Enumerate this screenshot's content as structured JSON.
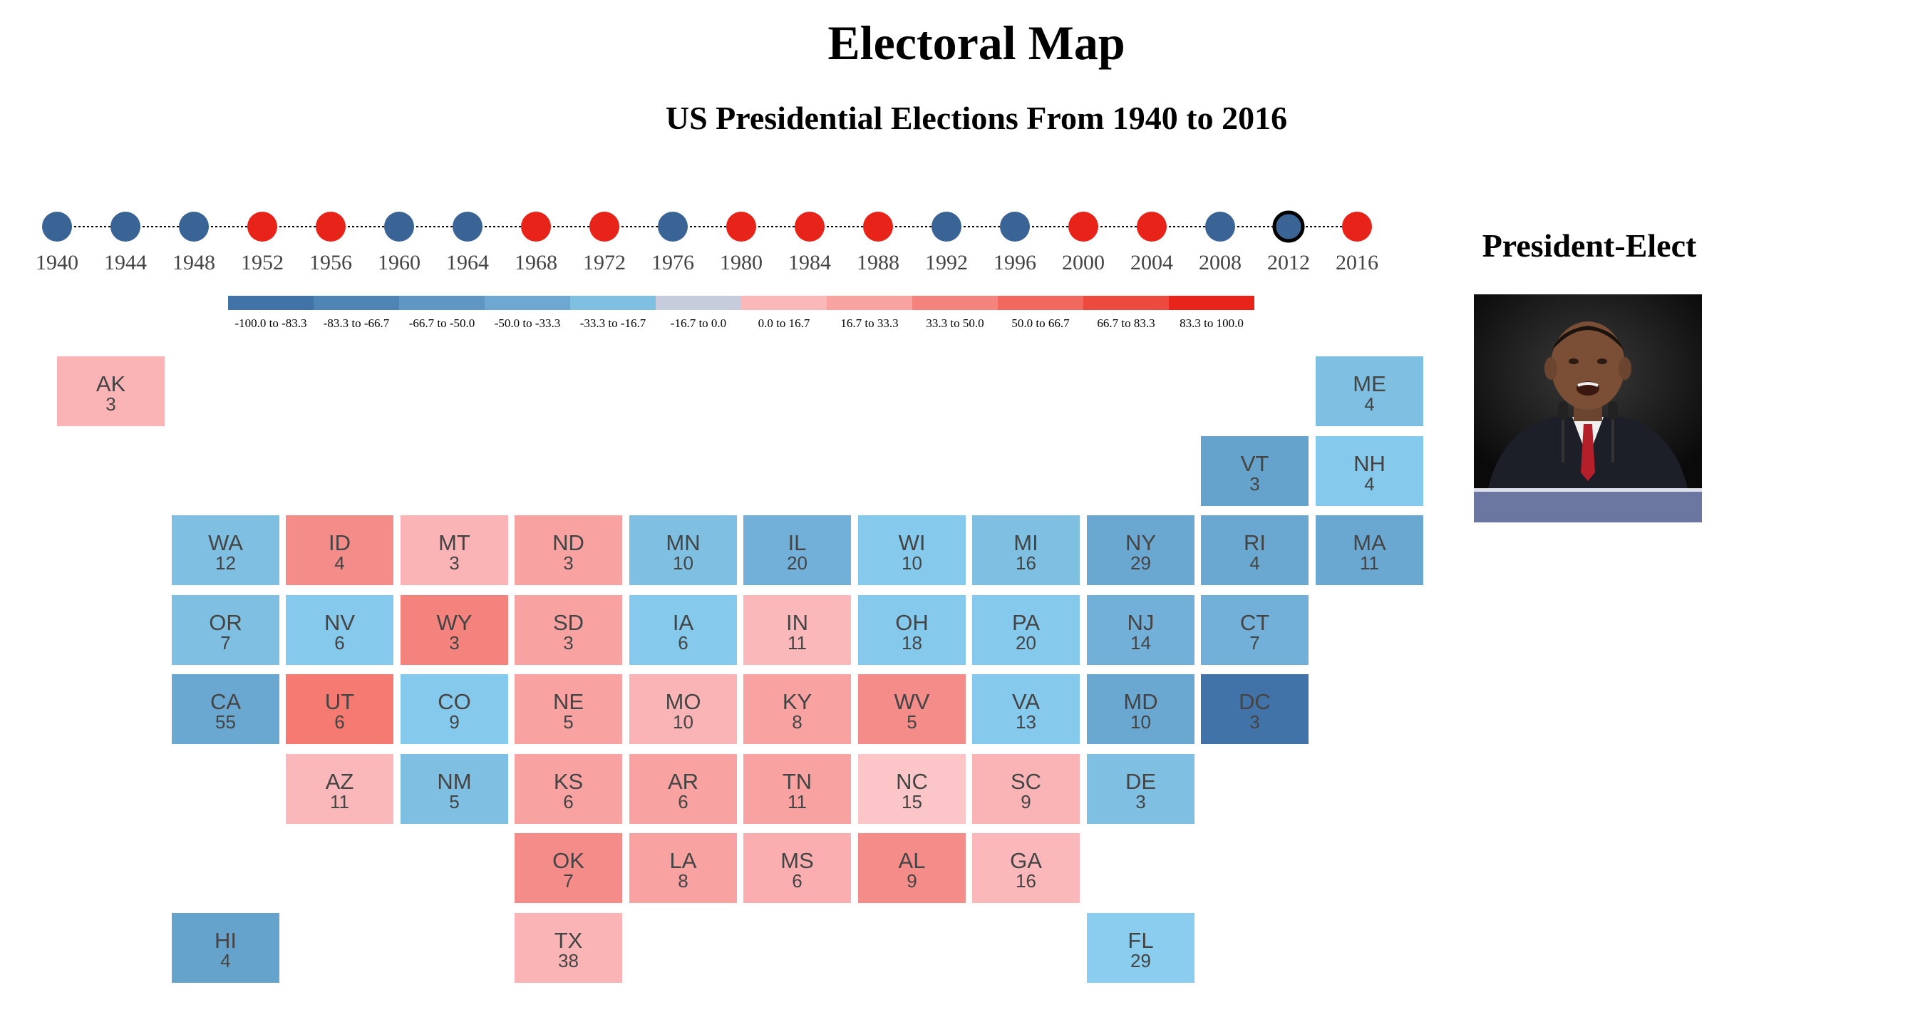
{
  "header": {
    "title": "Electoral Map",
    "subtitle": "US Presidential Elections From 1940 to 2016"
  },
  "colors": {
    "democrat": "#3a6496",
    "republican": "#e82319",
    "selected_stroke": "#000000"
  },
  "timeline": {
    "selected_year": "2012",
    "elections": [
      {
        "year": "1940",
        "winner": "D"
      },
      {
        "year": "1944",
        "winner": "D"
      },
      {
        "year": "1948",
        "winner": "D"
      },
      {
        "year": "1952",
        "winner": "R"
      },
      {
        "year": "1956",
        "winner": "R"
      },
      {
        "year": "1960",
        "winner": "D"
      },
      {
        "year": "1964",
        "winner": "D"
      },
      {
        "year": "1968",
        "winner": "R"
      },
      {
        "year": "1972",
        "winner": "R"
      },
      {
        "year": "1976",
        "winner": "D"
      },
      {
        "year": "1980",
        "winner": "R"
      },
      {
        "year": "1984",
        "winner": "R"
      },
      {
        "year": "1988",
        "winner": "R"
      },
      {
        "year": "1992",
        "winner": "D"
      },
      {
        "year": "1996",
        "winner": "D"
      },
      {
        "year": "2000",
        "winner": "R"
      },
      {
        "year": "2004",
        "winner": "R"
      },
      {
        "year": "2008",
        "winner": "D"
      },
      {
        "year": "2012",
        "winner": "D"
      },
      {
        "year": "2016",
        "winner": "R"
      }
    ]
  },
  "legend": {
    "bins": [
      {
        "label": "-100.0 to -83.3",
        "color": "#4273a8"
      },
      {
        "label": "-83.3 to -66.7",
        "color": "#4f84b6"
      },
      {
        "label": "-66.7 to -50.0",
        "color": "#5f96c4"
      },
      {
        "label": "-50.0 to -33.3",
        "color": "#6ea8d2"
      },
      {
        "label": "-33.3 to -16.7",
        "color": "#7ebfe2"
      },
      {
        "label": "-16.7 to 0.0",
        "color": "#c6ccdc"
      },
      {
        "label": "0.0 to 16.7",
        "color": "#fbb8ba"
      },
      {
        "label": "16.7 to 33.3",
        "color": "#f8a2a2"
      },
      {
        "label": "33.3 to 50.0",
        "color": "#f4827d"
      },
      {
        "label": "50.0 to 66.7",
        "color": "#f0685e"
      },
      {
        "label": "66.7 to 83.3",
        "color": "#ec4a3e"
      },
      {
        "label": "83.3 to 100.0",
        "color": "#e82319"
      }
    ]
  },
  "map": {
    "states": [
      {
        "abbr": "AK",
        "votes": "3",
        "row": 0,
        "col": 0,
        "color": "#fbb4b6"
      },
      {
        "abbr": "ME",
        "votes": "4",
        "row": 0,
        "col": 11,
        "color": "#7ebfe2"
      },
      {
        "abbr": "VT",
        "votes": "3",
        "row": 1,
        "col": 10,
        "color": "#65a3cc"
      },
      {
        "abbr": "NH",
        "votes": "4",
        "row": 1,
        "col": 11,
        "color": "#85c9ec"
      },
      {
        "abbr": "WA",
        "votes": "12",
        "row": 2,
        "col": 1,
        "color": "#7ebfe2"
      },
      {
        "abbr": "ID",
        "votes": "4",
        "row": 2,
        "col": 2,
        "color": "#f48d8a"
      },
      {
        "abbr": "MT",
        "votes": "3",
        "row": 2,
        "col": 3,
        "color": "#fbb4b6"
      },
      {
        "abbr": "ND",
        "votes": "3",
        "row": 2,
        "col": 4,
        "color": "#f8a2a2"
      },
      {
        "abbr": "MN",
        "votes": "10",
        "row": 2,
        "col": 5,
        "color": "#7ebfe2"
      },
      {
        "abbr": "IL",
        "votes": "20",
        "row": 2,
        "col": 6,
        "color": "#72b0d9"
      },
      {
        "abbr": "WI",
        "votes": "10",
        "row": 2,
        "col": 7,
        "color": "#85c9ec"
      },
      {
        "abbr": "MI",
        "votes": "16",
        "row": 2,
        "col": 8,
        "color": "#7ebfe2"
      },
      {
        "abbr": "NY",
        "votes": "29",
        "row": 2,
        "col": 9,
        "color": "#6aa8d1"
      },
      {
        "abbr": "RI",
        "votes": "4",
        "row": 2,
        "col": 10,
        "color": "#6aa8d1"
      },
      {
        "abbr": "MA",
        "votes": "11",
        "row": 2,
        "col": 11,
        "color": "#6aa8d1"
      },
      {
        "abbr": "OR",
        "votes": "7",
        "row": 3,
        "col": 1,
        "color": "#7ebfe2"
      },
      {
        "abbr": "NV",
        "votes": "6",
        "row": 3,
        "col": 2,
        "color": "#85c9ec"
      },
      {
        "abbr": "WY",
        "votes": "3",
        "row": 3,
        "col": 3,
        "color": "#f4827d"
      },
      {
        "abbr": "SD",
        "votes": "3",
        "row": 3,
        "col": 4,
        "color": "#f8a2a2"
      },
      {
        "abbr": "IA",
        "votes": "6",
        "row": 3,
        "col": 5,
        "color": "#85c9ec"
      },
      {
        "abbr": "IN",
        "votes": "11",
        "row": 3,
        "col": 6,
        "color": "#fbb8ba"
      },
      {
        "abbr": "OH",
        "votes": "18",
        "row": 3,
        "col": 7,
        "color": "#85c9ec"
      },
      {
        "abbr": "PA",
        "votes": "20",
        "row": 3,
        "col": 8,
        "color": "#85c9ec"
      },
      {
        "abbr": "NJ",
        "votes": "14",
        "row": 3,
        "col": 9,
        "color": "#72b0d9"
      },
      {
        "abbr": "CT",
        "votes": "7",
        "row": 3,
        "col": 10,
        "color": "#72b0d9"
      },
      {
        "abbr": "CA",
        "votes": "55",
        "row": 4,
        "col": 1,
        "color": "#6aa8d1"
      },
      {
        "abbr": "UT",
        "votes": "6",
        "row": 4,
        "col": 2,
        "color": "#f47a72"
      },
      {
        "abbr": "CO",
        "votes": "9",
        "row": 4,
        "col": 3,
        "color": "#85c9ec"
      },
      {
        "abbr": "NE",
        "votes": "5",
        "row": 4,
        "col": 4,
        "color": "#f8a2a2"
      },
      {
        "abbr": "MO",
        "votes": "10",
        "row": 4,
        "col": 5,
        "color": "#fbb4b6"
      },
      {
        "abbr": "KY",
        "votes": "8",
        "row": 4,
        "col": 6,
        "color": "#f8a2a2"
      },
      {
        "abbr": "WV",
        "votes": "5",
        "row": 4,
        "col": 7,
        "color": "#f48d8a"
      },
      {
        "abbr": "VA",
        "votes": "13",
        "row": 4,
        "col": 8,
        "color": "#85c9ec"
      },
      {
        "abbr": "MD",
        "votes": "10",
        "row": 4,
        "col": 9,
        "color": "#6aa8d1"
      },
      {
        "abbr": "DC",
        "votes": "3",
        "row": 4,
        "col": 10,
        "color": "#4273a8"
      },
      {
        "abbr": "AZ",
        "votes": "11",
        "row": 5,
        "col": 2,
        "color": "#fbb8ba"
      },
      {
        "abbr": "NM",
        "votes": "5",
        "row": 5,
        "col": 3,
        "color": "#7ebfe2"
      },
      {
        "abbr": "KS",
        "votes": "6",
        "row": 5,
        "col": 4,
        "color": "#f8a2a2"
      },
      {
        "abbr": "AR",
        "votes": "6",
        "row": 5,
        "col": 5,
        "color": "#f8a2a2"
      },
      {
        "abbr": "TN",
        "votes": "11",
        "row": 5,
        "col": 6,
        "color": "#f8a2a2"
      },
      {
        "abbr": "NC",
        "votes": "15",
        "row": 5,
        "col": 7,
        "color": "#fcc6c8"
      },
      {
        "abbr": "SC",
        "votes": "9",
        "row": 5,
        "col": 8,
        "color": "#fbb4b6"
      },
      {
        "abbr": "DE",
        "votes": "3",
        "row": 5,
        "col": 9,
        "color": "#7ebfe2"
      },
      {
        "abbr": "OK",
        "votes": "7",
        "row": 6,
        "col": 4,
        "color": "#f48d8a"
      },
      {
        "abbr": "LA",
        "votes": "8",
        "row": 6,
        "col": 5,
        "color": "#f8a2a2"
      },
      {
        "abbr": "MS",
        "votes": "6",
        "row": 6,
        "col": 6,
        "color": "#fbaeb0"
      },
      {
        "abbr": "AL",
        "votes": "9",
        "row": 6,
        "col": 7,
        "color": "#f48d8a"
      },
      {
        "abbr": "GA",
        "votes": "16",
        "row": 6,
        "col": 8,
        "color": "#fbb8ba"
      },
      {
        "abbr": "HI",
        "votes": "4",
        "row": 7,
        "col": 1,
        "color": "#65a3cc"
      },
      {
        "abbr": "TX",
        "votes": "38",
        "row": 7,
        "col": 4,
        "color": "#fbb4b6"
      },
      {
        "abbr": "FL",
        "votes": "29",
        "row": 7,
        "col": 9,
        "color": "#8acdee"
      }
    ]
  },
  "president_elect": {
    "heading": "President-Elect"
  }
}
